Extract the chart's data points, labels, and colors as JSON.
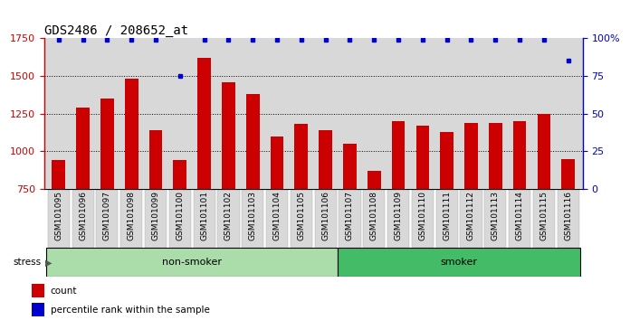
{
  "title": "GDS2486 / 208652_at",
  "categories": [
    "GSM101095",
    "GSM101096",
    "GSM101097",
    "GSM101098",
    "GSM101099",
    "GSM101100",
    "GSM101101",
    "GSM101102",
    "GSM101103",
    "GSM101104",
    "GSM101105",
    "GSM101106",
    "GSM101107",
    "GSM101108",
    "GSM101109",
    "GSM101110",
    "GSM101111",
    "GSM101112",
    "GSM101113",
    "GSM101114",
    "GSM101115",
    "GSM101116"
  ],
  "bar_values": [
    940,
    1290,
    1350,
    1480,
    1140,
    940,
    1620,
    1460,
    1380,
    1100,
    1180,
    1140,
    1050,
    870,
    1200,
    1170,
    1130,
    1190,
    1190,
    1200,
    1250,
    945
  ],
  "percentile_values": [
    99,
    99,
    99,
    99,
    99,
    75,
    99,
    99,
    99,
    99,
    99,
    99,
    99,
    99,
    99,
    99,
    99,
    99,
    99,
    99,
    99,
    85
  ],
  "bar_color": "#cc0000",
  "dot_color": "#0000cc",
  "ylim_left": [
    750,
    1750
  ],
  "ylim_right": [
    0,
    100
  ],
  "yticks_left": [
    750,
    1000,
    1250,
    1500,
    1750
  ],
  "yticks_right": [
    0,
    25,
    50,
    75,
    100
  ],
  "non_smoker_count": 12,
  "smoker_count": 10,
  "non_smoker_color": "#aaddaa",
  "smoker_color": "#44bb66",
  "group_label_non_smoker": "non-smoker",
  "group_label_smoker": "smoker",
  "stress_label": "stress",
  "legend_count_label": "count",
  "legend_pct_label": "percentile rank within the sample",
  "bg_color": "#d8d8d8",
  "title_fontsize": 10,
  "tick_fontsize": 6.5,
  "axis_color_left": "#cc0000",
  "axis_color_right": "#0000cc",
  "grid_color": "black",
  "grid_linestyle": "dotted",
  "grid_linewidth": 0.7
}
